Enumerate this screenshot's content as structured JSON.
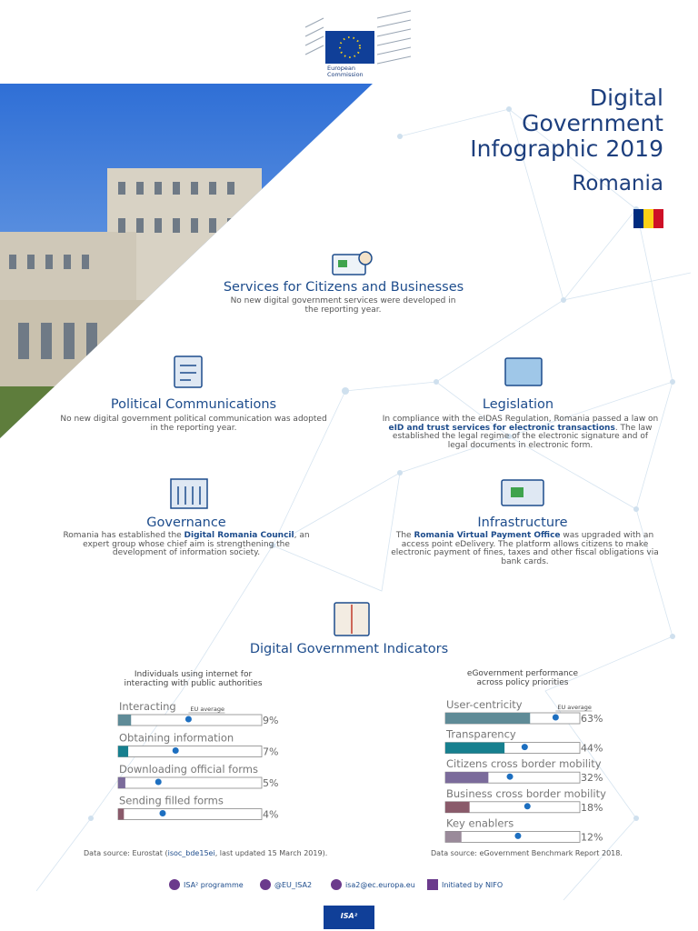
{
  "header": {
    "logo_text": "European Commission",
    "title_lines": [
      "Digital",
      "Government",
      "Infographic 2019"
    ],
    "country": "Romania"
  },
  "sections": [
    {
      "title": "Services for Citizens and Businesses",
      "text": [
        "No new digital government services were developed in the reporting year."
      ]
    },
    {
      "title": "Political Communications",
      "text": [
        "No new digital government political communication was adopted in the reporting year."
      ]
    },
    {
      "title": "Legislation",
      "text": [
        "In compliance with the eIDAS Regulation, Romania passed a law on ",
        "eID and trust services for electronic transactions",
        ". The law established the legal regime of the electronic signature and of legal documents in electronic form."
      ]
    },
    {
      "title": "Governance",
      "text": [
        "Romania has established the ",
        "Digital Romania Council",
        ", an expert group whose chief aim is strengthening the development of information society."
      ]
    },
    {
      "title": "Infrastructure",
      "text": [
        "The ",
        "Romania Virtual Payment Office",
        " was upgraded with an access point eDelivery. The platform allows citizens to make electronic payment of fines, taxes and other fiscal obligations via bank cards."
      ]
    }
  ],
  "indicators_title": "Digital Government Indicators",
  "chart_data": [
    {
      "type": "bar",
      "orientation": "horizontal",
      "title": "Individuals using internet for interacting with public authorities",
      "categories": [
        "Interacting",
        "Obtaining information",
        "Downloading official forms",
        "Sending filled forms"
      ],
      "values": [
        9,
        7,
        5,
        4
      ],
      "value_labels": [
        "9%",
        "7%",
        "5%",
        "4%"
      ],
      "colors": [
        "#5f8b97",
        "#17808f",
        "#7b6b9b",
        "#8a5a6a"
      ],
      "eu_average": [
        49,
        40,
        28,
        31
      ],
      "eu_average_label": "EU average",
      "xlim": [
        0,
        100
      ],
      "source": [
        "Data source: Eurostat (",
        "isoc_bde15ei",
        ", last updated 15 March 2019)."
      ]
    },
    {
      "type": "bar",
      "orientation": "horizontal",
      "title": "eGovernment performance across policy priorities",
      "categories": [
        "User-centricity",
        "Transparency",
        "Citizens cross border mobility",
        "Business cross border mobility",
        "Key enablers"
      ],
      "values": [
        63,
        44,
        32,
        18,
        12
      ],
      "value_labels": [
        "63%",
        "44%",
        "32%",
        "18%",
        "12%"
      ],
      "colors": [
        "#5f8b97",
        "#17808f",
        "#7b6b9b",
        "#8a5a6a",
        "#9a8a9a"
      ],
      "eu_average": [
        82,
        59,
        48,
        61,
        54
      ],
      "eu_average_label": "EU average",
      "xlim": [
        0,
        100
      ],
      "source": [
        "Data source: eGovernment Benchmark Report 2018."
      ]
    }
  ],
  "footer": {
    "links": [
      "ISA² programme",
      "@EU_ISA2",
      "isa2@ec.europa.eu",
      "Initiated by NIFO"
    ],
    "badge": "ISA²"
  }
}
